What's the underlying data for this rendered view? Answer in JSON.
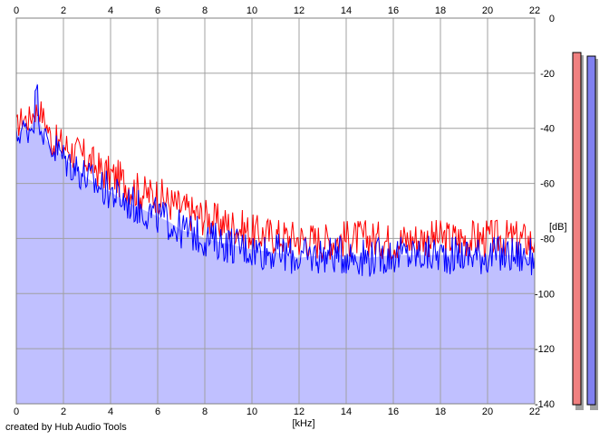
{
  "credit": "created by Hub Audio Tools",
  "chart_data": {
    "type": "line",
    "title": "",
    "xlabel": "[kHz]",
    "ylabel": "[dB]",
    "xlim": [
      0,
      22
    ],
    "ylim": [
      -140,
      0
    ],
    "x_ticks": [
      "0",
      "2",
      "4",
      "6",
      "8",
      "10",
      "12",
      "14",
      "16",
      "18",
      "20",
      "22"
    ],
    "y_ticks": [
      "0",
      "-20",
      "-40",
      "-60",
      "-80",
      "-100",
      "-120",
      "-140"
    ],
    "grid": true,
    "fill_color": "#c0c0ff",
    "series": [
      {
        "color": "#ff0000",
        "x": [
          0,
          0.25,
          0.5,
          0.75,
          1.0,
          1.25,
          1.5,
          1.75,
          2.0,
          2.5,
          3.0,
          3.5,
          4.0,
          4.5,
          5.0,
          5.5,
          6.0,
          6.5,
          7.0,
          7.5,
          8.0,
          8.5,
          9.0,
          9.5,
          10.0,
          11.0,
          12.0,
          13.0,
          14.0,
          15.0,
          16.0,
          17.0,
          18.0,
          19.0,
          20.0,
          21.0,
          22.0
        ],
        "y": [
          -40,
          -36,
          -37,
          -34,
          -33,
          -38,
          -44,
          -46,
          -46,
          -49,
          -51,
          -55,
          -57,
          -59,
          -62,
          -64,
          -64,
          -67,
          -69,
          -71,
          -72,
          -74,
          -75,
          -76,
          -78,
          -79,
          -80,
          -81,
          -80,
          -80,
          -81,
          -80,
          -80,
          -80,
          -80,
          -80,
          -81
        ]
      },
      {
        "color": "#0000ff",
        "x": [
          0,
          0.25,
          0.5,
          0.75,
          0.85,
          1.0,
          1.25,
          1.5,
          1.75,
          2.0,
          2.5,
          3.0,
          3.5,
          4.0,
          4.5,
          5.0,
          5.5,
          6.0,
          6.5,
          7.0,
          7.5,
          8.0,
          8.5,
          9.0,
          9.5,
          10.0,
          11.0,
          12.0,
          13.0,
          14.0,
          15.0,
          16.0,
          17.0,
          18.0,
          19.0,
          20.0,
          21.0,
          22.0
        ],
        "y": [
          -44,
          -40,
          -41,
          -37,
          -23,
          -38,
          -44,
          -47,
          -48,
          -51,
          -54,
          -58,
          -61,
          -63,
          -66,
          -68,
          -70,
          -72,
          -74,
          -77,
          -78,
          -80,
          -81,
          -82,
          -83,
          -84,
          -85,
          -87,
          -86,
          -86,
          -87,
          -86,
          -86,
          -86,
          -86,
          -86,
          -86,
          -87
        ]
      }
    ],
    "level_meters": [
      {
        "color": "#f08080",
        "level_db": 0
      },
      {
        "color": "#8080f0",
        "level_db": 0
      }
    ]
  }
}
